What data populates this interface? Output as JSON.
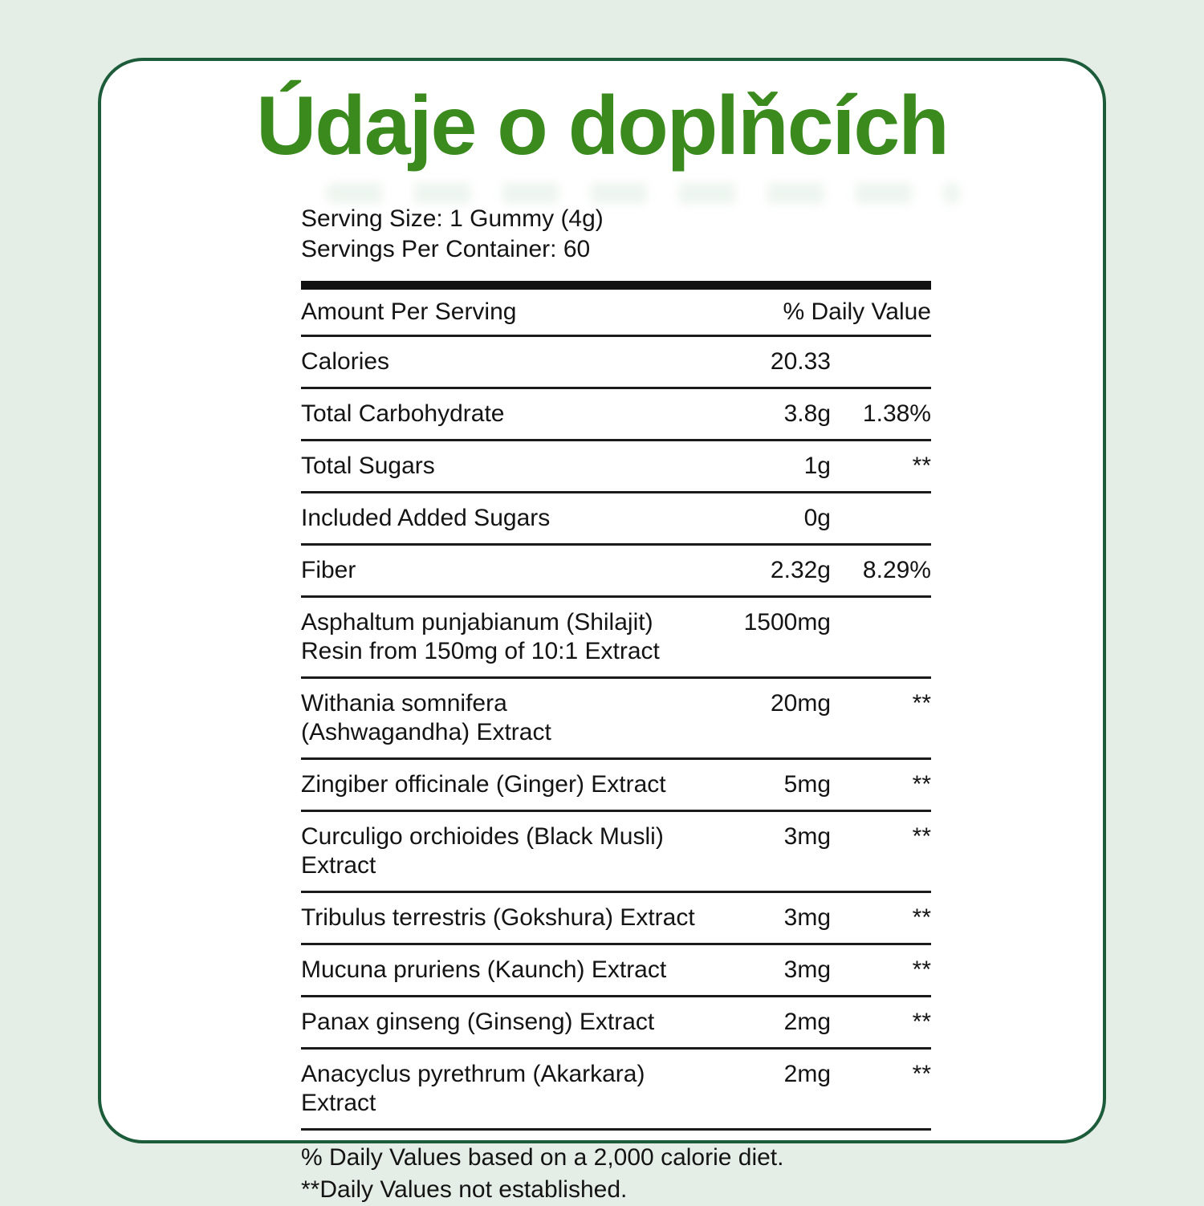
{
  "page": {
    "title": "Údaje o doplňcích"
  },
  "label": {
    "serving_size": "Serving Size: 1 Gummy (4g)",
    "servings_per_container": "Servings Per Container: 60",
    "header": {
      "amount": "Amount Per Serving",
      "daily_value": "% Daily Value"
    },
    "rows": [
      {
        "name": "Calories",
        "name2": "",
        "amount": "20.33",
        "dv": ""
      },
      {
        "name": "Total Carbohydrate",
        "name2": "",
        "amount": "3.8g",
        "dv": "1.38%"
      },
      {
        "name": "Total Sugars",
        "name2": "",
        "amount": "1g",
        "dv": "**"
      },
      {
        "name": "Included Added Sugars",
        "name2": "",
        "amount": "0g",
        "dv": ""
      },
      {
        "name": "Fiber",
        "name2": "",
        "amount": "2.32g",
        "dv": "8.29%"
      },
      {
        "name": "Asphaltum punjabianum (Shilajit)",
        "name2": "Resin from 150mg of 10:1 Extract",
        "amount": "1500mg",
        "dv": ""
      },
      {
        "name": "Withania somnifera",
        "name2": "(Ashwagandha) Extract",
        "amount": "20mg",
        "dv": "**"
      },
      {
        "name": "Zingiber officinale (Ginger) Extract",
        "name2": "",
        "amount": "5mg",
        "dv": "**"
      },
      {
        "name": "Curculigo orchioides (Black Musli) Extract",
        "name2": "",
        "amount": "3mg",
        "dv": "**"
      },
      {
        "name": "Tribulus terrestris (Gokshura) Extract",
        "name2": "",
        "amount": "3mg",
        "dv": "**"
      },
      {
        "name": "Mucuna pruriens (Kaunch) Extract",
        "name2": "",
        "amount": "3mg",
        "dv": "**"
      },
      {
        "name": "Panax ginseng (Ginseng) Extract",
        "name2": "",
        "amount": "2mg",
        "dv": "**"
      },
      {
        "name": "Anacyclus pyrethrum (Akarkara) Extract",
        "name2": "",
        "amount": "2mg",
        "dv": "**"
      }
    ],
    "footnotes": [
      "% Daily Values based on a 2,000 calorie diet.",
      "**Daily Values not established."
    ]
  },
  "colors": {
    "background_mint": "#e5eee6",
    "card_border_green": "#1d5c3b",
    "title_green": "#3a8a1e",
    "text": "#141414",
    "rule_black": "#111111"
  }
}
